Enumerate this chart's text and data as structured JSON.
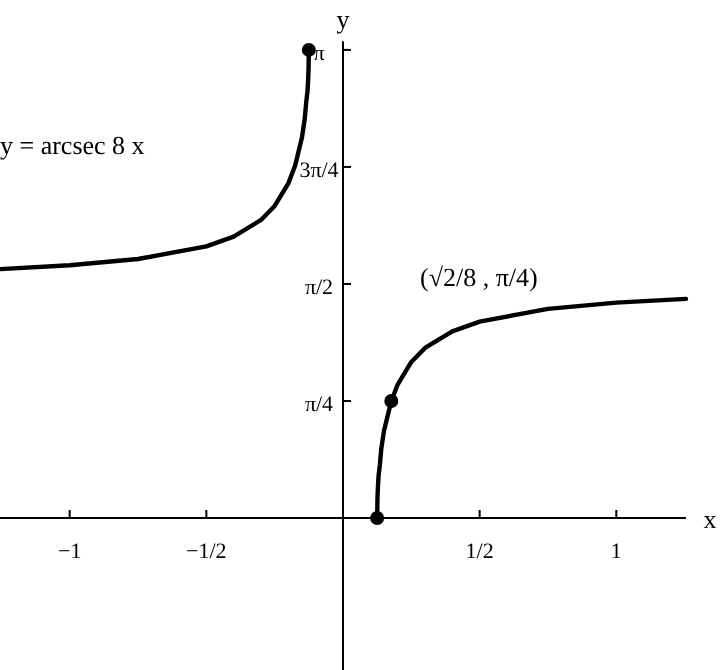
{
  "chart_data": {
    "type": "line",
    "xlabel": "x",
    "ylabel": "y",
    "xlim": [
      -1.255,
      1.255
    ],
    "ylim": [
      -1.02,
      3.2
    ],
    "xticks": [
      {
        "value": -1,
        "label": "−1"
      },
      {
        "value": -0.5,
        "label": "−1/2"
      },
      {
        "value": 0.5,
        "label": "1/2"
      },
      {
        "value": 1,
        "label": "1"
      }
    ],
    "yticks": [
      {
        "value": 0.7854,
        "label": "π/4"
      },
      {
        "value": 1.5708,
        "label": "π/2"
      },
      {
        "value": 2.3562,
        "label": "3π/4"
      },
      {
        "value": 3.1416,
        "label": "π"
      }
    ],
    "grid": false,
    "line_style": "solid",
    "series": [
      {
        "color": "#000000",
        "x": [
          -1.255,
          -1.0,
          -0.75,
          -0.5,
          -0.4,
          -0.3,
          -0.25,
          -0.2,
          -0.175,
          -0.15,
          -0.14,
          -0.135,
          -0.13,
          -0.1275,
          -0.126,
          -0.125
        ],
        "values": [
          1.6706,
          1.6961,
          1.7382,
          1.8235,
          1.8886,
          2.0004,
          2.0944,
          2.2459,
          2.3664,
          2.5559,
          2.6787,
          2.7828,
          2.8618,
          2.9433,
          3.0157,
          3.1416
        ]
      },
      {
        "color": "#000000",
        "x": [
          0.125,
          0.126,
          0.1275,
          0.13,
          0.135,
          0.14,
          0.15,
          0.1768,
          0.2,
          0.25,
          0.3,
          0.4,
          0.5,
          0.75,
          1.0,
          1.255
        ],
        "values": [
          0,
          0.1259,
          0.1983,
          0.2798,
          0.3588,
          0.4629,
          0.5857,
          0.7854,
          0.8957,
          1.0472,
          1.1412,
          1.253,
          1.3181,
          1.4034,
          1.4455,
          1.471
        ]
      },
      {
        "type": "scatter",
        "color": "#000000",
        "marker": "circle",
        "x": [
          -0.125,
          0.125,
          0.1768
        ],
        "values": [
          3.1416,
          0,
          0.7854
        ]
      }
    ],
    "annotations": [
      "y = arcsec 8 x",
      "(√2/8 , π/4)"
    ]
  }
}
